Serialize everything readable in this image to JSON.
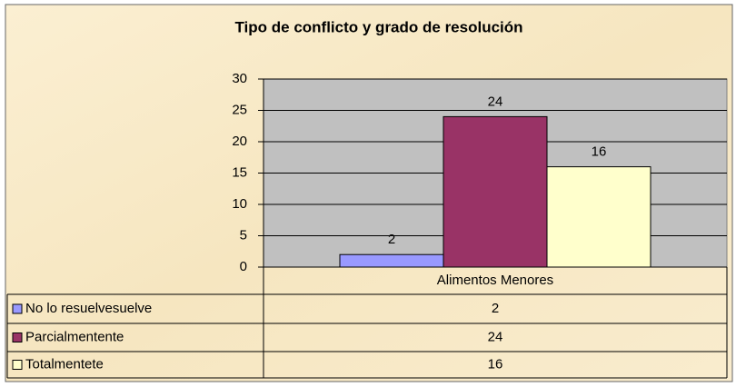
{
  "chart_data": {
    "type": "bar",
    "title": "Tipo de  conflicto y grado de resolución",
    "categories": [
      "Alimentos Menores"
    ],
    "series": [
      {
        "name": "No lo resuelvesuelve",
        "color": "#9999ff",
        "values": [
          2
        ]
      },
      {
        "name": "Parcialmentente",
        "color": "#993366",
        "values": [
          24
        ]
      },
      {
        "name": "Totalmentete",
        "color": "#ffffcc",
        "values": [
          16
        ]
      }
    ],
    "ylim": [
      0,
      30
    ],
    "yticks": [
      0,
      5,
      10,
      15,
      20,
      25,
      30
    ],
    "grid": true,
    "data_table": true
  }
}
